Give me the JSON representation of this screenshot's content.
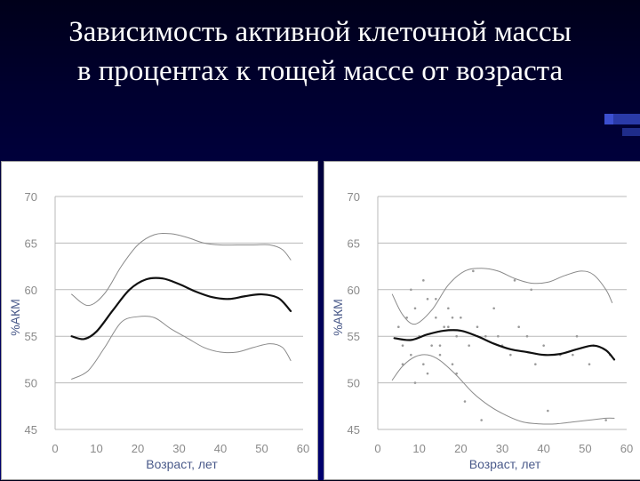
{
  "slide": {
    "title_line1": "Зависимость активной клеточной массы",
    "title_line2": "в процентах к тощей массе от возраста"
  },
  "chart_data": [
    {
      "type": "line",
      "xlabel": "Возраст, лет",
      "ylabel": "%АКМ",
      "xlim": [
        0,
        60
      ],
      "ylim": [
        45,
        70
      ],
      "xticks": [
        "0",
        "10",
        "20",
        "30",
        "40",
        "50",
        "60"
      ],
      "yticks": [
        "45",
        "50",
        "55",
        "60",
        "65",
        "70"
      ],
      "grid": "horizontal",
      "series": [
        {
          "x": [
            4,
            8,
            12,
            16,
            20,
            24,
            28,
            32,
            36,
            40,
            44,
            48,
            52,
            55,
            57
          ],
          "y": [
            59.5,
            58.3,
            59.6,
            62.5,
            64.8,
            65.9,
            66.0,
            65.6,
            65.0,
            64.8,
            64.8,
            64.8,
            64.8,
            64.3,
            63.2
          ]
        },
        {
          "x": [
            4,
            7,
            10,
            14,
            18,
            22,
            26,
            30,
            34,
            38,
            42,
            46,
            50,
            54,
            57
          ],
          "y": [
            55.0,
            54.7,
            55.5,
            57.8,
            60.0,
            61.1,
            61.2,
            60.6,
            59.8,
            59.2,
            59.0,
            59.3,
            59.5,
            59.1,
            57.7
          ]
        },
        {
          "x": [
            4,
            8,
            12,
            16,
            20,
            24,
            28,
            32,
            36,
            40,
            44,
            48,
            52,
            55,
            57
          ],
          "y": [
            50.4,
            51.3,
            53.8,
            56.5,
            57.1,
            57.0,
            55.8,
            54.8,
            53.8,
            53.3,
            53.3,
            53.8,
            54.2,
            53.8,
            52.4
          ]
        }
      ]
    },
    {
      "type": "line",
      "xlabel": "Возраст, лет",
      "ylabel": "%АКМ",
      "xlim": [
        0,
        60
      ],
      "ylim": [
        45,
        70
      ],
      "xticks": [
        "0",
        "10",
        "20",
        "30",
        "40",
        "50",
        "60"
      ],
      "yticks": [
        "45",
        "50",
        "55",
        "60",
        "65",
        "70"
      ],
      "grid": "horizontal",
      "series": [
        {
          "x": [
            3.5,
            6,
            9,
            13,
            17,
            21,
            25,
            29,
            33,
            37,
            41,
            45,
            49,
            52,
            55,
            56.5
          ],
          "y": [
            59.5,
            57.3,
            56.3,
            57.8,
            60.5,
            62.0,
            62.3,
            62.0,
            61.2,
            60.7,
            60.8,
            61.5,
            62.0,
            61.6,
            60.0,
            58.6
          ]
        },
        {
          "x": [
            4,
            8,
            12,
            16,
            20,
            24,
            28,
            32,
            36,
            40,
            44,
            48,
            52,
            55,
            57
          ],
          "y": [
            54.8,
            54.6,
            55.2,
            55.6,
            55.6,
            55.0,
            54.2,
            53.6,
            53.3,
            53.0,
            53.1,
            53.6,
            54.0,
            53.5,
            52.5
          ]
        },
        {
          "x": [
            3.5,
            6,
            9,
            12,
            15,
            19,
            23,
            27,
            31,
            35,
            39,
            43,
            47,
            51,
            55,
            57
          ],
          "y": [
            50.3,
            51.8,
            52.8,
            53.0,
            52.4,
            50.8,
            48.9,
            47.5,
            46.5,
            45.8,
            45.6,
            45.6,
            45.8,
            46.0,
            46.2,
            46.2
          ]
        }
      ],
      "scatter_points": {
        "x": [
          5,
          6,
          7,
          8,
          9,
          10,
          11,
          12,
          13,
          14,
          15,
          16,
          17,
          18,
          19,
          20,
          22,
          24,
          26,
          28,
          30,
          32,
          34,
          36,
          38,
          40,
          44,
          48,
          52,
          56,
          6,
          9,
          12,
          15,
          18,
          21,
          25,
          29,
          33,
          37,
          41,
          47,
          51,
          55,
          8,
          11,
          14,
          17,
          19,
          23
        ],
        "y": [
          56,
          54,
          57,
          53,
          58,
          55,
          52,
          59,
          54,
          57,
          53,
          56,
          58,
          52,
          55,
          57,
          54,
          56,
          55,
          58,
          54,
          53,
          56,
          55,
          52,
          54,
          53,
          55,
          54,
          53,
          52,
          50,
          51,
          54,
          57,
          48,
          46,
          55,
          61,
          60,
          47,
          53,
          52,
          46,
          60,
          61,
          59,
          56,
          51,
          62
        ]
      }
    }
  ]
}
